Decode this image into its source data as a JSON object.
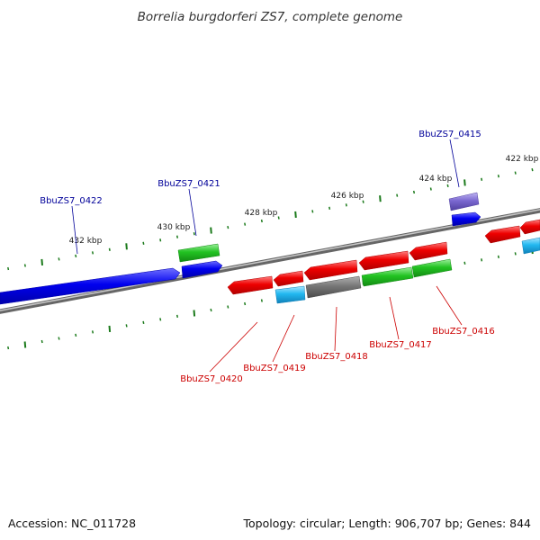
{
  "title": "Borrelia burgdorferi ZS7, complete genome",
  "footer": {
    "accession": "Accession: NC_011728",
    "topology": "Topology: circular; Length: 906,707 bp; Genes: 844"
  },
  "colors": {
    "forward_cds": "#0000ee",
    "reverse_cds": "#ee0000",
    "rna": "#22c322",
    "other": "#777777",
    "cyan": "#22b8f0",
    "purple": "#7b68d0",
    "backbone": "#888888",
    "tick": "#1b7a1b",
    "label_forward": "#000099",
    "label_reverse": "#cc0000"
  },
  "ticks": [
    {
      "label": "432 kbp"
    },
    {
      "label": "430 kbp"
    },
    {
      "label": "428 kbp"
    },
    {
      "label": "426 kbp"
    },
    {
      "label": "424 kbp"
    },
    {
      "label": "422 kbp"
    }
  ],
  "gene_labels": [
    {
      "label": "BbuZS7_0422",
      "strand": "forward"
    },
    {
      "label": "BbuZS7_0421",
      "strand": "forward"
    },
    {
      "label": "BbuZS7_0415",
      "strand": "forward"
    },
    {
      "label": "BbuZS7_0420",
      "strand": "reverse"
    },
    {
      "label": "BbuZS7_0419",
      "strand": "reverse"
    },
    {
      "label": "BbuZS7_0418",
      "strand": "reverse"
    },
    {
      "label": "BbuZS7_0417",
      "strand": "reverse"
    },
    {
      "label": "BbuZS7_0416",
      "strand": "reverse"
    }
  ]
}
